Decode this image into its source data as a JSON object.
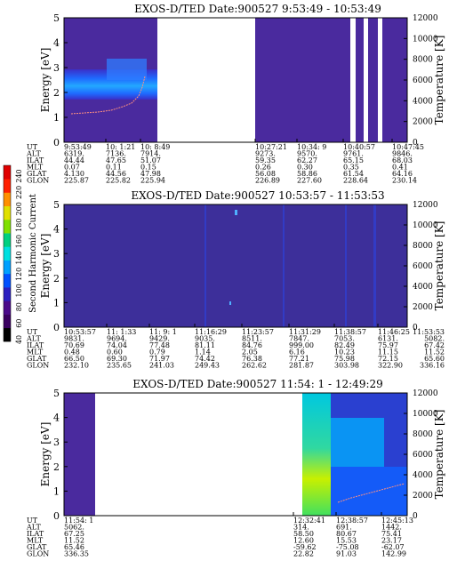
{
  "colorbar": {
    "label": "Second Harmonic Current",
    "ticks": [
      "240",
      "220",
      "200",
      "180",
      "160",
      "140",
      "120",
      "100",
      "80",
      "60",
      "40"
    ],
    "colors": [
      "#000000",
      "#3a0060",
      "#4b0a8a",
      "#2a1fc0",
      "#0050ff",
      "#00a0ff",
      "#00e0e0",
      "#00d080",
      "#80e000",
      "#e0e000",
      "#ff9000",
      "#ff2000",
      "#e00000"
    ]
  },
  "chart_data": [
    {
      "type": "heatmap",
      "title": "EXOS-D/TED   Date:900527  9:53:49 - 10:53:49",
      "ylabel": "Energy [eV]",
      "y2label": "Temperature [K]",
      "ylim": [
        0,
        5
      ],
      "y2lim": [
        0,
        12000
      ],
      "yticks": [
        "0",
        "1",
        "2",
        "3",
        "4",
        "5"
      ],
      "y2ticks": [
        "0",
        "2000",
        "4000",
        "6000",
        "8000",
        "10000",
        "12000"
      ],
      "table_rows": [
        "UT",
        "ALT",
        "ILAT",
        "MLT",
        "GLAT",
        "GLON"
      ],
      "columns": [
        {
          "UT": "9:53:49",
          "ALT": "6319.",
          "ILAT": "44.44",
          "MLT": "0.07",
          "GLAT": "4.130",
          "GLON": "225.87"
        },
        {
          "UT": "10: 1:21",
          "ALT": "7136.",
          "ILAT": "47.65",
          "MLT": "0.11",
          "GLAT": "44.56",
          "GLON": "225.82"
        },
        {
          "UT": "10: 8:49",
          "ALT": "7914.",
          "ILAT": "51.07",
          "MLT": "0.15",
          "GLAT": "47.98",
          "GLON": "225.94"
        },
        {
          "UT": "10:27:21",
          "ALT": "9273.",
          "ILAT": "59.35",
          "MLT": "0.26",
          "GLAT": "56.08",
          "GLON": "226.89"
        },
        {
          "UT": "10:34: 9",
          "ALT": "9570.",
          "ILAT": "62.27",
          "MLT": "0.30",
          "GLAT": "58.86",
          "GLON": "227.60"
        },
        {
          "UT": "10:40:57",
          "ALT": "9761.",
          "ILAT": "65.15",
          "MLT": "0.35",
          "GLAT": "61.54",
          "GLON": "228.64"
        },
        {
          "UT": "10:47:45",
          "ALT": "9846.",
          "ILAT": "68.03",
          "MLT": "0.41",
          "GLAT": "64.16",
          "GLON": "230.14"
        }
      ]
    },
    {
      "type": "heatmap",
      "title": "EXOS-D/TED   Date:900527  10:53:57 - 11:53:53",
      "ylabel": "Energy [eV]",
      "y2label": "Temperature [K]",
      "ylim": [
        0,
        5
      ],
      "y2lim": [
        0,
        12000
      ],
      "yticks": [
        "0",
        "1",
        "2",
        "3",
        "4",
        "5"
      ],
      "y2ticks": [
        "0",
        "2000",
        "4000",
        "6000",
        "8000",
        "10000",
        "12000"
      ],
      "table_rows": [
        "UT",
        "ALT",
        "ILAT",
        "MLT",
        "GLAT",
        "GLON"
      ],
      "columns": [
        {
          "UT": "10:53:57",
          "ALT": "9831.",
          "ILAT": "70.69",
          "MLT": "0.48",
          "GLAT": "66.50",
          "GLON": "232.10"
        },
        {
          "UT": "11: 1:33",
          "ALT": "9694.",
          "ILAT": "74.04",
          "MLT": "0.60",
          "GLAT": "69.30",
          "GLON": "235.65"
        },
        {
          "UT": "11: 9: 1",
          "ALT": "9429.",
          "ILAT": "77.48",
          "MLT": "0.79",
          "GLAT": "71.97",
          "GLON": "241.03"
        },
        {
          "UT": "11:16:29",
          "ALT": "9035.",
          "ILAT": "81.11",
          "MLT": "1.14",
          "GLAT": "74.42",
          "GLON": "249.43"
        },
        {
          "UT": "11:23:57",
          "ALT": "8511.",
          "ILAT": "84.76",
          "MLT": "2.05",
          "GLAT": "76.38",
          "GLON": "262.62"
        },
        {
          "UT": "11:31:29",
          "ALT": "7847.",
          "ILAT": "999.00",
          "MLT": "6.16",
          "GLAT": "77.21",
          "GLON": "281.87"
        },
        {
          "UT": "11:38:57",
          "ALT": "7053.",
          "ILAT": "82.49",
          "MLT": "10.23",
          "GLAT": "75.98",
          "GLON": "303.98"
        },
        {
          "UT": "11:46:25",
          "ALT": "6131.",
          "ILAT": "75.97",
          "MLT": "11.15",
          "GLAT": "72.15",
          "GLON": "322.90"
        },
        {
          "UT": "11:53:53",
          "ALT": "5082.",
          "ILAT": "67.42",
          "MLT": "11.52",
          "GLAT": "65.60",
          "GLON": "336.16"
        }
      ]
    },
    {
      "type": "heatmap",
      "title": "EXOS-D/TED   Date:900527  11:54: 1 - 12:49:29",
      "ylabel": "Energy [eV]",
      "y2label": "Temperature [K]",
      "ylim": [
        0,
        5
      ],
      "y2lim": [
        0,
        12000
      ],
      "yticks": [
        "0",
        "1",
        "2",
        "3",
        "4",
        "5"
      ],
      "y2ticks": [
        "0",
        "2000",
        "4000",
        "6000",
        "8000",
        "10000",
        "12000"
      ],
      "table_rows": [
        "UT",
        "ALT",
        "ILAT",
        "MLT",
        "GLAT",
        "GLON"
      ],
      "columns": [
        {
          "UT": "11:54: 1",
          "ALT": "5062.",
          "ILAT": "67.25",
          "MLT": "11.52",
          "GLAT": "65.46",
          "GLON": "336.35"
        },
        {
          "UT": "12:32:41",
          "ALT": "314.",
          "ILAT": "58.50",
          "MLT": "12.60",
          "GLAT": "-59.62",
          "GLON": "22.82"
        },
        {
          "UT": "12:38:57",
          "ALT": "691.",
          "ILAT": "80.67",
          "MLT": "15.53",
          "GLAT": "-75.08",
          "GLON": "91.03"
        },
        {
          "UT": "12:45:13",
          "ALT": "1442.",
          "ILAT": "75.41",
          "MLT": "23.17",
          "GLAT": "-62.07",
          "GLON": "142.99"
        }
      ]
    }
  ]
}
